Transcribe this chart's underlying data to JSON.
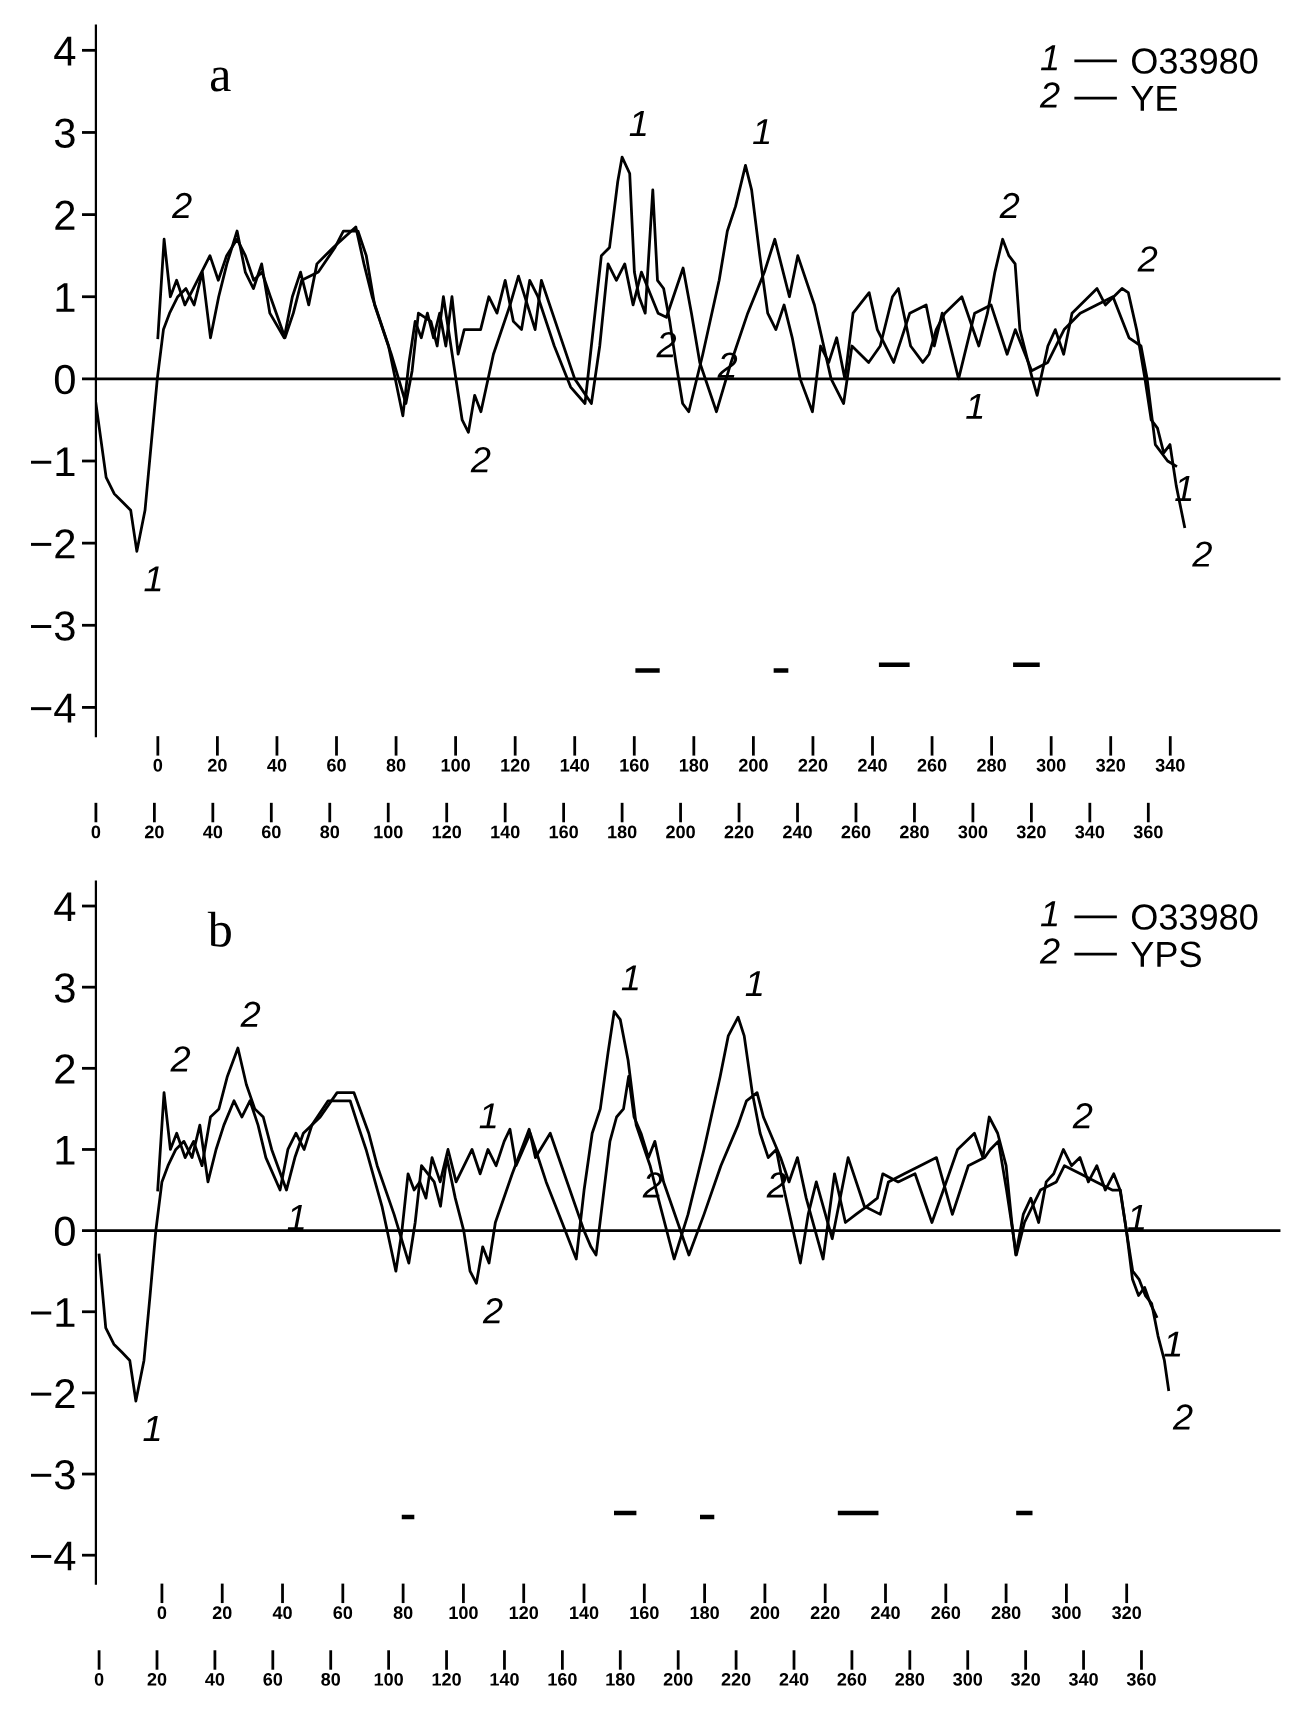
{
  "chart_data": [
    {
      "type": "line",
      "title": "a",
      "legend": "top right",
      "grid": false,
      "marker": "none",
      "line_style": "solid",
      "xlim": [
        0,
        405.2
      ],
      "x2lim": [
        -20.8,
        377
      ],
      "ylim": [
        -4.35,
        4.3
      ],
      "xticks": [
        0,
        20,
        40,
        60,
        80,
        100,
        120,
        140,
        160,
        180,
        200,
        220,
        240,
        260,
        280,
        300,
        320,
        340,
        360
      ],
      "x2ticks": [
        0,
        20,
        40,
        60,
        80,
        100,
        120,
        140,
        160,
        180,
        200,
        220,
        240,
        260,
        280,
        300,
        320,
        340
      ],
      "yticks": [
        {
          "value": -4,
          "label": "−4"
        },
        {
          "value": -3,
          "label": "−3"
        },
        {
          "value": -2,
          "label": "−2"
        },
        {
          "value": -1,
          "label": "−1"
        },
        0,
        1,
        2,
        3,
        4
      ],
      "ref_lines": [
        {
          "axis": "y",
          "value": 0
        }
      ],
      "series": [
        {
          "name": "O33980",
          "color": "#000000",
          "x": [
            0,
            3.5,
            6.3,
            9.1,
            11.9,
            14,
            16.8,
            18.9,
            21,
            23.1,
            25.2,
            28,
            30.8,
            33.6,
            36.4,
            39.2,
            42,
            44.8,
            48.3,
            51.1,
            53.9,
            56.7,
            59.5,
            64.4,
            67.2,
            70,
            72.8,
            75.6,
            81.2,
            88.9,
            91.7,
            94.5,
            100.1,
            105,
            107.1,
            109.2,
            111.3,
            113.4,
            115.5,
            117.6,
            119.7,
            121.8,
            123.9,
            126,
            131.6,
            134.4,
            137.2,
            140,
            142.8,
            145.6,
            148.4,
            151.2,
            156.8,
            162.4,
            167.3,
            170.1,
            172.9,
            175.7,
            178.5,
            180,
            182.6,
            184.2,
            185.8,
            187.9,
            190.5,
            192.1,
            194.2,
            196.3,
            198.4,
            200.7,
            202.8,
            207.6,
            213.2,
            216,
            218.8,
            222.2,
            224.3,
            227.1,
            229.8,
            232.6,
            235.4,
            238.2,
            240.9,
            245.1,
            247.9,
            250.7,
            253.4,
            256.2,
            259,
            264.5,
            267.3,
            272.9,
            278.4,
            284,
            286.8,
            289.5,
            295.1,
            300.6,
            306.2,
            311.7,
            314.5,
            320.1,
            325.6,
            331.2,
            336.7,
            342.3,
            347.9,
            353.4,
            357.5,
            359.6,
            362.4,
            366.6,
            369.4
          ],
          "values": [
            -0.3,
            -1.2,
            -1.4,
            -1.5,
            -1.6,
            -2.1,
            -1.6,
            -0.8,
            0.0,
            0.6,
            0.8,
            1.0,
            1.1,
            0.9,
            1.3,
            0.5,
            1.0,
            1.4,
            1.8,
            1.3,
            1.1,
            1.4,
            0.8,
            0.5,
            1.0,
            1.3,
            0.9,
            1.4,
            1.6,
            1.85,
            1.4,
            1.0,
            0.4,
            -0.45,
            0.2,
            0.7,
            0.5,
            0.8,
            0.5,
            0.8,
            0.4,
            1.0,
            0.3,
            0.6,
            0.6,
            1.0,
            0.8,
            1.2,
            0.7,
            0.6,
            1.2,
            1.0,
            0.4,
            -0.1,
            -0.3,
            0.6,
            1.5,
            1.6,
            2.4,
            2.7,
            2.5,
            1.3,
            1.0,
            0.8,
            2.3,
            1.2,
            1.1,
            0.7,
            0.2,
            -0.3,
            -0.4,
            0.3,
            1.2,
            1.8,
            2.1,
            2.6,
            2.3,
            1.5,
            0.8,
            0.6,
            0.9,
            0.5,
            0.0,
            -0.4,
            0.4,
            0.2,
            0.5,
            0.0,
            0.8,
            1.05,
            0.6,
            0.2,
            0.8,
            0.9,
            0.4,
            0.8,
            0.0,
            0.8,
            0.9,
            0.3,
            0.6,
            0.1,
            0.2,
            0.6,
            0.8,
            0.9,
            1.0,
            0.5,
            0.4,
            0.0,
            -0.8,
            -1.0,
            -1.06
          ]
        },
        {
          "name": "YE",
          "color": "#000000",
          "axis": "x2",
          "x": [
            0,
            2.1,
            4.2,
            6.3,
            9.1,
            11.9,
            17.5,
            20.3,
            23.1,
            26.6,
            29.4,
            32.2,
            35,
            37.8,
            42.7,
            45.5,
            48.3,
            53.9,
            59.5,
            62.3,
            67.2,
            70,
            72.8,
            78.4,
            83.3,
            85.4,
            87.5,
            91.7,
            93.8,
            95.9,
            98,
            102.2,
            104.3,
            106.4,
            108.5,
            112.7,
            118.3,
            121.1,
            126.7,
            128.8,
            134.4,
            140,
            145.6,
            148.4,
            151.2,
            154,
            156.8,
            159.6,
            162.4,
            168,
            170.8,
            176.4,
            179.2,
            182,
            187.6,
            192.5,
            198.1,
            203.7,
            207.2,
            209.3,
            212.1,
            214.9,
            220.5,
            226.1,
            230.3,
            233.1,
            238.7,
            242.6,
            246.7,
            248.7,
            252.8,
            256.9,
            259,
            261.4,
            264.3,
            270,
            275.7,
            278.6,
            281.1,
            283.7,
            285.8,
            287.9,
            289.5,
            293.7,
            295.3,
            298.9,
            301.4,
            304.2,
            307,
            309.8,
            315.4,
            318.2,
            323.8,
            325.9,
            328.7,
            331.5,
            333.6,
            335.7,
            337.8,
            339.9,
            342,
            344.8
          ],
          "values": [
            0.5,
            1.7,
            1.0,
            1.2,
            0.9,
            1.1,
            1.5,
            1.2,
            1.5,
            1.7,
            1.5,
            1.2,
            1.3,
            1.0,
            0.5,
            0.8,
            1.2,
            1.3,
            1.6,
            1.8,
            1.8,
            1.5,
            0.9,
            0.3,
            -0.3,
            0.1,
            0.8,
            0.7,
            0.4,
            1.0,
            0.5,
            -0.5,
            -0.65,
            -0.2,
            -0.4,
            0.3,
            0.9,
            1.25,
            0.6,
            1.2,
            0.6,
            0.0,
            -0.3,
            0.4,
            1.4,
            1.2,
            1.4,
            0.9,
            1.3,
            0.8,
            0.75,
            1.35,
            0.8,
            0.2,
            -0.4,
            0.2,
            0.8,
            1.3,
            1.7,
            1.4,
            1.0,
            1.5,
            0.9,
            0.0,
            -0.3,
            0.4,
            0.2,
            0.4,
            1.0,
            1.1,
            0.4,
            0.2,
            0.3,
            0.6,
            0.8,
            1.0,
            0.4,
            0.8,
            1.3,
            1.7,
            1.5,
            1.4,
            0.6,
            0.0,
            -0.2,
            0.4,
            0.6,
            0.3,
            0.8,
            0.9,
            1.1,
            0.9,
            1.1,
            1.05,
            0.6,
            0.0,
            -0.5,
            -0.6,
            -0.9,
            -0.8,
            -1.3,
            -1.8
          ]
        },
        {
          "color": "#000000",
          "x": [
            185.3,
            192.1,
            192.2,
            232.6,
            236.1,
            236.2,
            268.6,
            277.6,
            277.7,
            314.5,
            322.1
          ],
          "values": [
            -3.55,
            -3.55,
            null,
            -3.55,
            -3.55,
            null,
            -3.48,
            -3.48,
            null,
            -3.48,
            -3.48
          ]
        }
      ],
      "annotations": [
        {
          "text": "1",
          "x": 14,
          "y": -2.1
        },
        {
          "text": "2",
          "x": 23.8,
          "y": 1.7
        },
        {
          "text": "2",
          "x": 126,
          "y": -0.65
        },
        {
          "text": "1",
          "x": 180,
          "y": 2.7
        },
        {
          "text": "2",
          "x": 189.5,
          "y": 0.75
        },
        {
          "text": "1",
          "x": 222.2,
          "y": 2.6
        },
        {
          "text": "2",
          "x": 210.4,
          "y": 0.5
        },
        {
          "text": "2",
          "x": 306.9,
          "y": 1.7
        },
        {
          "text": "1",
          "x": 295.1,
          "y": 0.0
        },
        {
          "text": "2",
          "x": 354.1,
          "y": 1.05
        },
        {
          "text": "1",
          "x": 366.6,
          "y": -1.0
        },
        {
          "text": "2",
          "x": 372.8,
          "y": -1.8
        }
      ]
    },
    {
      "type": "line",
      "title": "b",
      "legend": "top right",
      "grid": false,
      "marker": "none",
      "line_style": "solid",
      "xlim": [
        -1.1,
        408
      ],
      "x2lim": [
        -21.9,
        371
      ],
      "ylim": [
        -4.35,
        4.3
      ],
      "xticks": [
        0,
        20,
        40,
        60,
        80,
        100,
        120,
        140,
        160,
        180,
        200,
        220,
        240,
        260,
        280,
        300,
        320,
        340,
        360
      ],
      "x2ticks": [
        0,
        20,
        40,
        60,
        80,
        100,
        120,
        140,
        160,
        180,
        200,
        220,
        240,
        260,
        280,
        300,
        320
      ],
      "yticks": [
        {
          "value": -4,
          "label": "−4"
        },
        {
          "value": -3,
          "label": "−3"
        },
        {
          "value": -2,
          "label": "−2"
        },
        {
          "value": -1,
          "label": "−1"
        },
        0,
        1,
        2,
        3,
        4
      ],
      "ref_lines": [
        {
          "axis": "y",
          "value": 0
        }
      ],
      "series": [
        {
          "name": "O33980",
          "color": "#000000",
          "x": [
            0,
            2.3,
            5.1,
            7.9,
            10.6,
            12.7,
            15.5,
            17.6,
            19.6,
            21.7,
            23.8,
            26.5,
            29.3,
            32.1,
            34.8,
            37.6,
            40.4,
            43.1,
            46.6,
            49.3,
            52.1,
            54.9,
            57.6,
            62.5,
            65.2,
            68,
            70.8,
            73.5,
            79.1,
            84.6,
            86.7,
            89.4,
            92.2,
            97.7,
            102.5,
            104.6,
            106.7,
            108.8,
            110.8,
            112.9,
            115,
            117.8,
            120.5,
            123.3,
            128.8,
            131.6,
            134.3,
            137.1,
            139.9,
            141.9,
            144,
            148.9,
            154.4,
            159.9,
            164.8,
            167.5,
            170.3,
            173.1,
            175.8,
            177.9,
            180,
            182.7,
            185.5,
            190.3,
            193.1,
            198.6,
            203.4,
            208.9,
            214.5,
            217.3,
            220.7,
            222.8,
            225.6,
            228.3,
            231.1,
            233.9,
            236.6,
            242.2,
            244.9,
            247.7,
            253.2,
            258.7,
            264.3,
            269.8,
            272.6,
            278.1,
            283.6,
            289.2,
            294.7,
            300.2,
            305.8,
            307.8,
            310.6,
            313.4,
            316.8,
            319.6,
            325.1,
            330.6,
            333.4,
            338.9,
            344.4,
            349.9,
            352.7,
            354.8,
            356.9,
            359,
            361.1,
            363.1,
            365.2
          ],
          "values": [
            -0.3,
            -1.2,
            -1.4,
            -1.5,
            -1.6,
            -2.1,
            -1.6,
            -0.8,
            0.0,
            0.6,
            0.8,
            1.0,
            1.1,
            0.9,
            1.3,
            0.6,
            1.0,
            1.3,
            1.6,
            1.4,
            1.6,
            1.3,
            0.9,
            0.5,
            1.0,
            1.2,
            1.0,
            1.3,
            1.6,
            1.6,
            1.6,
            1.3,
            1.0,
            0.3,
            -0.5,
            0.0,
            0.7,
            0.5,
            0.6,
            0.4,
            0.9,
            0.6,
            1.0,
            0.6,
            1.0,
            0.7,
            1.0,
            0.8,
            1.1,
            1.25,
            0.8,
            1.2,
            0.6,
            0.1,
            -0.35,
            0.5,
            1.2,
            1.5,
            2.2,
            2.7,
            2.6,
            2.1,
            1.3,
            0.8,
            0.4,
            -0.35,
            0.2,
            1.0,
            1.9,
            2.4,
            2.63,
            2.4,
            1.7,
            1.2,
            0.9,
            1.0,
            0.5,
            -0.4,
            0.2,
            0.6,
            -0.1,
            0.9,
            0.3,
            0.2,
            0.6,
            0.7,
            0.8,
            0.9,
            0.2,
            0.8,
            0.9,
            1.0,
            1.1,
            0.5,
            -0.3,
            0.1,
            0.5,
            0.6,
            0.8,
            0.7,
            0.6,
            0.5,
            0.5,
            0.0,
            -0.6,
            -0.8,
            -0.7,
            -0.9,
            -1.06
          ]
        },
        {
          "name": "YPS",
          "color": "#000000",
          "axis": "x2",
          "x": [
            -1.4,
            0.7,
            2.8,
            4.9,
            7.7,
            10.5,
            13.3,
            16.1,
            18.9,
            21.7,
            25.2,
            28,
            30.8,
            33.6,
            36.4,
            41.3,
            44.1,
            46.9,
            52.5,
            58.1,
            63.7,
            68.6,
            71.4,
            77,
            81.9,
            84,
            86.1,
            90.3,
            92.4,
            94.5,
            97.3,
            100.1,
            102.2,
            104.3,
            106.4,
            108.5,
            110.6,
            116.2,
            121.8,
            123.9,
            128.8,
            134.4,
            140,
            142.3,
            144,
            146.3,
            148.6,
            150.8,
            153.1,
            154.8,
            156.6,
            158.9,
            161.4,
            163.5,
            166.4,
            169.2,
            174.8,
            179.8,
            185.4,
            191.1,
            193.9,
            197.4,
            199.5,
            205.2,
            208,
            210.8,
            213.7,
            219.3,
            221.3,
            223.1,
            226.7,
            230.2,
            233.8,
            237.3,
            239.1,
            244.2,
            249.8,
            255.4,
            261.1,
            263.9,
            269.5,
            272.3,
            274.4,
            277.2,
            280,
            281.9,
            283.2,
            285.7,
            288.2,
            290.8,
            293.3,
            295.8,
            299,
            301.7,
            304.5,
            307.3,
            310.1,
            312.9,
            315.7,
            317.8,
            319.9,
            322,
            324.1,
            326.2,
            328.3,
            330.4,
            332.5,
            333.9
          ],
          "values": [
            0.5,
            1.7,
            1.0,
            1.2,
            0.9,
            1.1,
            0.8,
            1.4,
            1.5,
            1.9,
            2.25,
            1.8,
            1.5,
            1.4,
            1.0,
            0.5,
            0.9,
            1.2,
            1.4,
            1.7,
            1.7,
            1.2,
            0.8,
            0.2,
            -0.4,
            0.1,
            0.8,
            0.6,
            0.3,
            0.9,
            0.4,
            0.0,
            -0.5,
            -0.65,
            -0.2,
            -0.4,
            0.1,
            0.7,
            1.25,
            0.9,
            1.2,
            0.6,
            0.0,
            -0.2,
            -0.3,
            0.4,
            1.1,
            1.4,
            1.5,
            1.9,
            1.4,
            1.2,
            0.9,
            1.1,
            0.6,
            0.3,
            -0.3,
            0.2,
            0.8,
            1.3,
            1.6,
            1.7,
            1.4,
            0.9,
            0.6,
            0.9,
            0.4,
            -0.35,
            0.2,
            0.7,
            0.1,
            0.2,
            0.3,
            0.4,
            0.7,
            0.6,
            0.7,
            0.1,
            0.7,
            1.0,
            1.2,
            0.9,
            1.4,
            1.2,
            0.8,
            0.1,
            -0.3,
            0.2,
            0.4,
            0.1,
            0.6,
            0.7,
            1.0,
            0.8,
            0.9,
            0.6,
            0.8,
            0.5,
            0.7,
            0.5,
            0.0,
            -0.5,
            -0.6,
            -0.8,
            -0.9,
            -1.3,
            -1.6,
            -1.96
          ]
        },
        {
          "color": "#000000",
          "x": [
            105.3,
            108.1,
            108.2,
            178.6,
            184.8,
            184.9,
            208.3,
            211.7,
            211.8,
            255.9,
            268.4,
            268.5,
            317.5,
            321.6
          ],
          "values": [
            -3.53,
            -3.53,
            null,
            -3.48,
            -3.48,
            null,
            -3.53,
            -3.53,
            null,
            -3.48,
            -3.48,
            null,
            -3.48,
            -3.48
          ]
        }
      ],
      "annotations": [
        {
          "text": "1",
          "x": 12.7,
          "y": -2.1
        },
        {
          "text": "2",
          "x": 22.4,
          "y": 1.7
        },
        {
          "text": "2",
          "x": 46.6,
          "y": 2.25
        },
        {
          "text": "1",
          "x": 62.5,
          "y": 0.5
        },
        {
          "text": "1",
          "x": 128.8,
          "y": 1.0
        },
        {
          "text": "2",
          "x": 130.3,
          "y": -0.65
        },
        {
          "text": "1",
          "x": 177.9,
          "y": 2.7
        },
        {
          "text": "2",
          "x": 185.5,
          "y": 0.9
        },
        {
          "text": "1",
          "x": 220.7,
          "y": 2.63
        },
        {
          "text": "2",
          "x": 228.3,
          "y": 0.9
        },
        {
          "text": "2",
          "x": 334,
          "y": 1.0
        },
        {
          "text": "1",
          "x": 352.7,
          "y": 0.5
        },
        {
          "text": "1",
          "x": 365.2,
          "y": -1.06
        },
        {
          "text": "2",
          "x": 368.6,
          "y": -1.96
        }
      ]
    }
  ]
}
